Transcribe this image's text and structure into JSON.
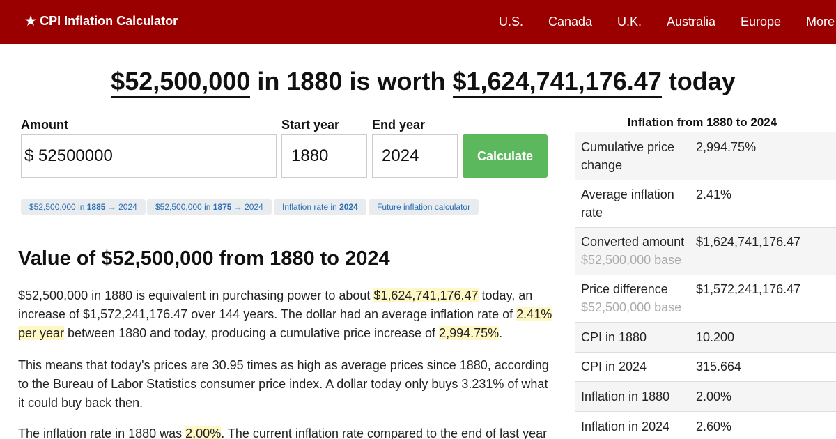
{
  "nav": {
    "brand_star": "★",
    "brand_label": "CPI Inflation Calculator",
    "links": [
      "U.S.",
      "Canada",
      "U.K.",
      "Australia",
      "Europe",
      "More"
    ]
  },
  "headline": {
    "amount": "$52,500,000",
    "middle": "in 1880 is worth",
    "value": "$1,624,741,176.47",
    "suffix": "today"
  },
  "form": {
    "amount_label": "Amount",
    "amount_prefix": "$",
    "amount_value": "52500000",
    "start_label": "Start year",
    "start_value": "1880",
    "end_label": "End year",
    "end_value": "2024",
    "calculate_label": "Calculate"
  },
  "chips": [
    {
      "pre": "$52,500,000 in ",
      "bold": "1885",
      "post": " → 2024"
    },
    {
      "pre": "$52,500,000 in ",
      "bold": "1875",
      "post": " → 2024"
    },
    {
      "pre": "Inflation rate in ",
      "bold": "2024",
      "post": ""
    },
    {
      "pre": "Future inflation calculator",
      "bold": "",
      "post": ""
    }
  ],
  "section_title": "Value of $52,500,000 from 1880 to 2024",
  "paragraphs": {
    "p1": {
      "a": "$52,500,000 in 1880 is equivalent in purchasing power to about ",
      "h1": "$1,624,741,176.47",
      "b": " today, an increase of $1,572,241,176.47 over 144 years. The dollar had an average inflation rate of ",
      "h2": "2.41% per year",
      "c": " between 1880 and today, producing a cumulative price increase of ",
      "h3": "2,994.75%",
      "d": "."
    },
    "p2": "This means that today's prices are 30.95 times as high as average prices since 1880, according to the Bureau of Labor Statistics consumer price index. A dollar today only buys 3.231% of what it could buy back then.",
    "p3": {
      "a": "The inflation rate in 1880 was ",
      "h1": "2.00%",
      "b": ". The current inflation rate compared to the end of last year"
    }
  },
  "sidebar": {
    "title": "Inflation from 1880 to 2024",
    "rows": [
      {
        "label": "Cumulative price change",
        "value": "2,994.75%",
        "sub": ""
      },
      {
        "label": "Average inflation rate",
        "value": "2.41%",
        "sub": ""
      },
      {
        "label": "Converted amount",
        "value": "$1,624,741,176.47",
        "sub": "$52,500,000 base"
      },
      {
        "label": "Price difference",
        "value": "$1,572,241,176.47",
        "sub": "$52,500,000 base"
      },
      {
        "label": "CPI in 1880",
        "value": "10.200",
        "sub": ""
      },
      {
        "label": "CPI in 2024",
        "value": "315.664",
        "sub": ""
      },
      {
        "label": "Inflation in 1880",
        "value": "2.00%",
        "sub": ""
      },
      {
        "label": "Inflation in 2024",
        "value": "2.60%",
        "sub": ""
      }
    ]
  },
  "colors": {
    "nav_bg": "#9b0000",
    "button_green": "#5cb85c",
    "link_blue": "#2a6db3",
    "highlight": "#fff8c4"
  }
}
